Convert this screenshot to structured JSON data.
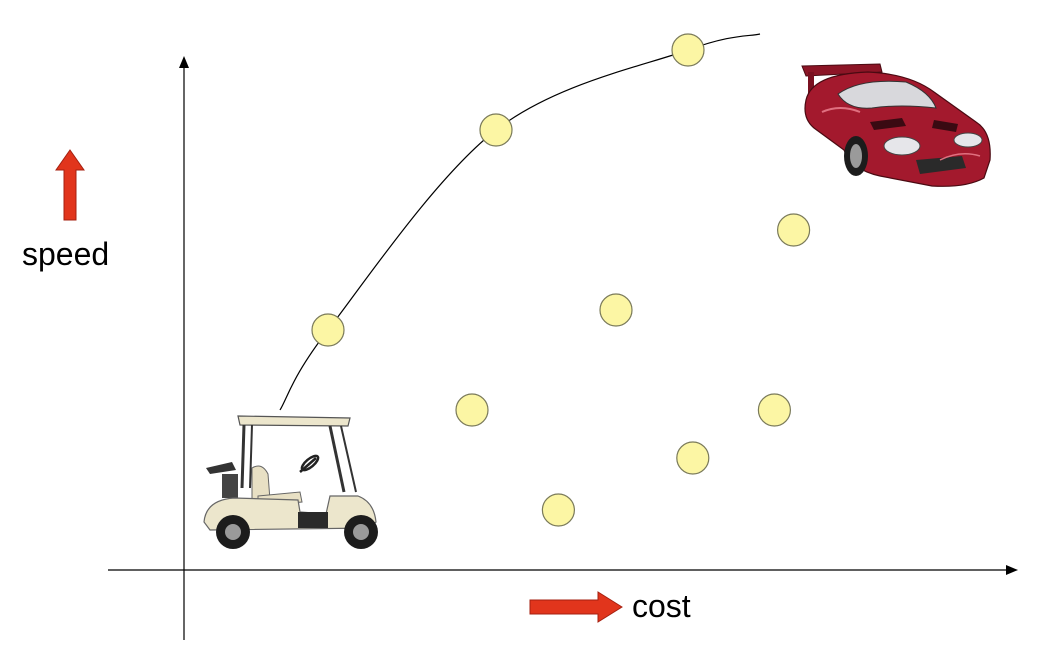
{
  "chart_data": {
    "type": "scatter",
    "xlabel": "cost",
    "ylabel": "speed",
    "points": [
      {
        "cost": 1.5,
        "speed": 3.0
      },
      {
        "cost": 3.25,
        "speed": 5.5
      },
      {
        "cost": 5.25,
        "speed": 6.5
      },
      {
        "cost": 3.0,
        "speed": 2.0
      },
      {
        "cost": 4.5,
        "speed": 3.25
      },
      {
        "cost": 3.9,
        "speed": 0.75
      },
      {
        "cost": 5.3,
        "speed": 1.4
      },
      {
        "cost": 6.35,
        "speed": 4.25
      },
      {
        "cost": 6.15,
        "speed": 2.0
      }
    ],
    "frontier": [
      {
        "cost": 1.0,
        "speed": 2.0
      },
      {
        "cost": 1.5,
        "speed": 3.0
      },
      {
        "cost": 3.25,
        "speed": 5.5
      },
      {
        "cost": 5.25,
        "speed": 6.5
      },
      {
        "cost": 6.0,
        "speed": 6.7
      }
    ],
    "xlim": [
      0,
      8.5
    ],
    "ylim": [
      -0.75,
      8.5
    ]
  },
  "labels": {
    "speed": "speed",
    "cost": "cost"
  },
  "images": {
    "low_end": "golf-cart",
    "high_end": "red-sports-car"
  },
  "colors": {
    "arrow": "#e1351c",
    "point_fill": "#fcf6a4",
    "golf_cart_body": "#ece6cc",
    "sports_car_body": "#a3192d"
  }
}
